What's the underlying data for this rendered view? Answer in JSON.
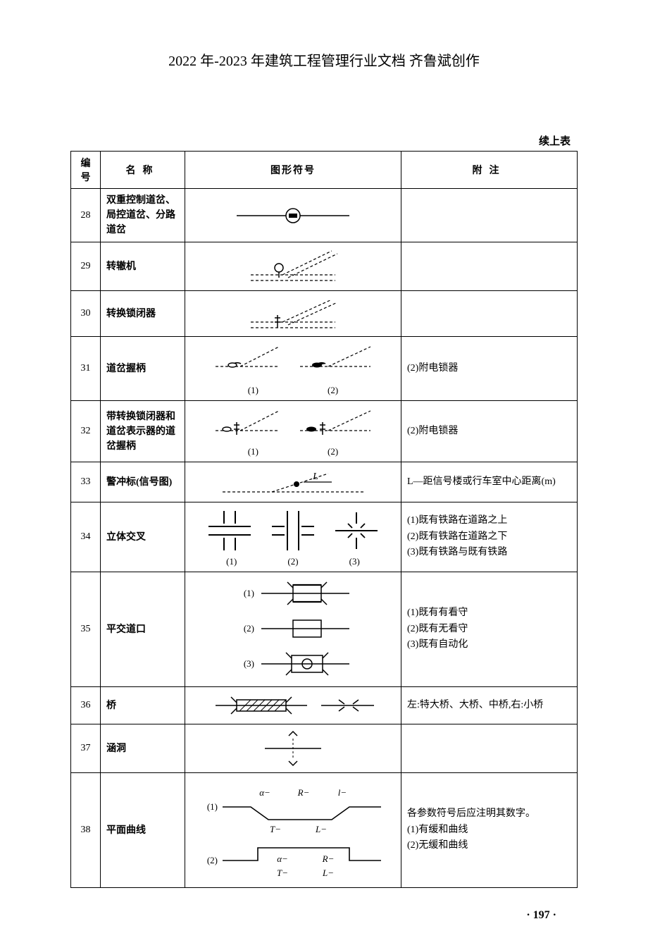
{
  "doc": {
    "header": "2022 年-2023 年建筑工程管理行业文档 齐鲁斌创作",
    "continuation_label": "续上表",
    "page_number": "· 197 ·"
  },
  "table": {
    "headers": {
      "id": "编号",
      "name": "名称",
      "symbol": "图形符号",
      "note": "附注"
    },
    "rows": [
      {
        "id": "28",
        "name": "双重控制道岔、局控道岔、分路道岔",
        "note": "",
        "symbol_height": 52,
        "sub_labels": []
      },
      {
        "id": "29",
        "name": "转辙机",
        "note": "",
        "symbol_height": 60,
        "sub_labels": []
      },
      {
        "id": "30",
        "name": "转换锁闭器",
        "note": "",
        "symbol_height": 56,
        "sub_labels": []
      },
      {
        "id": "31",
        "name": "道岔握柄",
        "note": "(2)附电锁器",
        "symbol_height": 68,
        "sub_labels": [
          "(1)",
          "(2)"
        ]
      },
      {
        "id": "32",
        "name": "带转换锁闭器和道岔表示器的道岔握柄",
        "note": "(2)附电锁器",
        "symbol_height": 72,
        "sub_labels": [
          "(1)",
          "(2)"
        ]
      },
      {
        "id": "33",
        "name": "警冲标(信号图)",
        "note": "L—距信号楼或行车室中心距离(m)",
        "symbol_height": 48,
        "sub_labels": [],
        "L_label": "L"
      },
      {
        "id": "34",
        "name": "立体交叉",
        "note": "(1)既有铁路在道路之上\n(2)既有铁路在道路之下\n(3)既有铁路与既有铁路",
        "symbol_height": 100,
        "sub_labels": [
          "(1)",
          "(2)",
          "(3)"
        ]
      },
      {
        "id": "35",
        "name": "平交道口",
        "note": "(1)既有有看守\n(2)既有无看守\n(3)既有自动化",
        "symbol_height": 150,
        "sub_labels": [
          "(1)",
          "(2)",
          "(3)"
        ]
      },
      {
        "id": "36",
        "name": "桥",
        "note": "左:特大桥、大桥、中桥,右:小桥",
        "symbol_height": 48,
        "sub_labels": []
      },
      {
        "id": "37",
        "name": "涵洞",
        "note": "",
        "symbol_height": 60,
        "sub_labels": []
      },
      {
        "id": "38",
        "name": "平面曲线",
        "note": "各参数符号后应注明其数字。\n(1)有缓和曲线\n(2)无缓和曲线",
        "symbol_height": 150,
        "sub_labels": [
          "(1)",
          "(2)"
        ],
        "param_labels": {
          "a": "α−",
          "R": "R−",
          "l": "l−",
          "T": "T−",
          "L": "L−"
        }
      }
    ]
  },
  "style": {
    "stroke": "#000000",
    "dash": "4,3",
    "bg": "#ffffff",
    "text_color": "#000000",
    "header_fontsize": 20,
    "body_fontsize": 14
  }
}
